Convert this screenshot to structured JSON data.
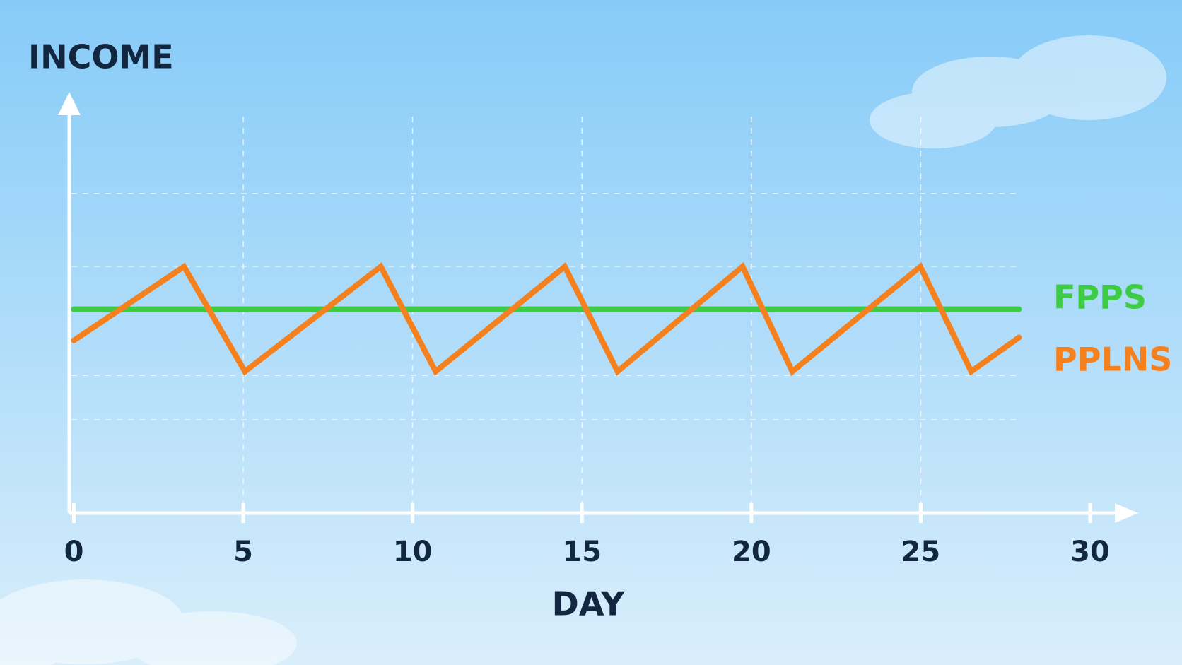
{
  "chart_data": {
    "type": "line",
    "x_label": "DAY",
    "y_label": "INCOME",
    "xlim": [
      0,
      30
    ],
    "xticks": [
      0,
      5,
      10,
      15,
      20,
      25,
      30
    ],
    "ylim": [
      0,
      10
    ],
    "grid": true,
    "series": [
      {
        "name": "FPPS",
        "color": "#3ecb45",
        "x": [
          0,
          27.9
        ],
        "values": [
          4.9,
          4.9
        ]
      },
      {
        "name": "PPLNS",
        "color": "#f5801e",
        "x": [
          0,
          3.25,
          5.05,
          9.06,
          10.68,
          14.49,
          16.05,
          19.74,
          21.21,
          24.99,
          26.49,
          27.9
        ],
        "values": [
          4.15,
          5.93,
          3.4,
          5.93,
          3.4,
          5.93,
          3.4,
          5.93,
          3.4,
          5.93,
          3.4,
          4.22
        ]
      }
    ]
  }
}
